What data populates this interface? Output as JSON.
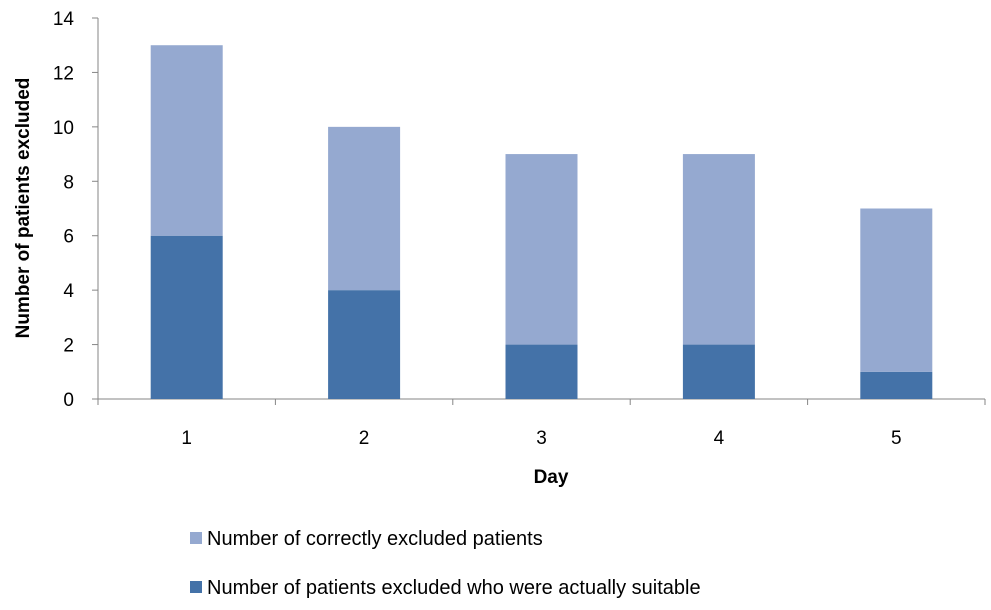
{
  "chart_data": {
    "type": "bar",
    "stacked": true,
    "title": "",
    "xlabel": "Day",
    "ylabel": "Number of patients excluded",
    "categories": [
      "1",
      "2",
      "3",
      "4",
      "5"
    ],
    "ylim": [
      0,
      14
    ],
    "yticks": [
      0,
      2,
      4,
      6,
      8,
      10,
      12,
      14
    ],
    "grid": false,
    "legend_position": "bottom",
    "series": [
      {
        "name": "Number of patients excluded who were actually suitable",
        "values": [
          6,
          4,
          2,
          2,
          1
        ],
        "color": "#4472a8"
      },
      {
        "name": "Number of correctly excluded patients",
        "values": [
          7,
          6,
          7,
          7,
          6
        ],
        "color": "#95a9d0"
      }
    ],
    "totals": [
      13,
      10,
      9,
      9,
      7
    ],
    "legend_order": [
      1,
      0
    ]
  }
}
